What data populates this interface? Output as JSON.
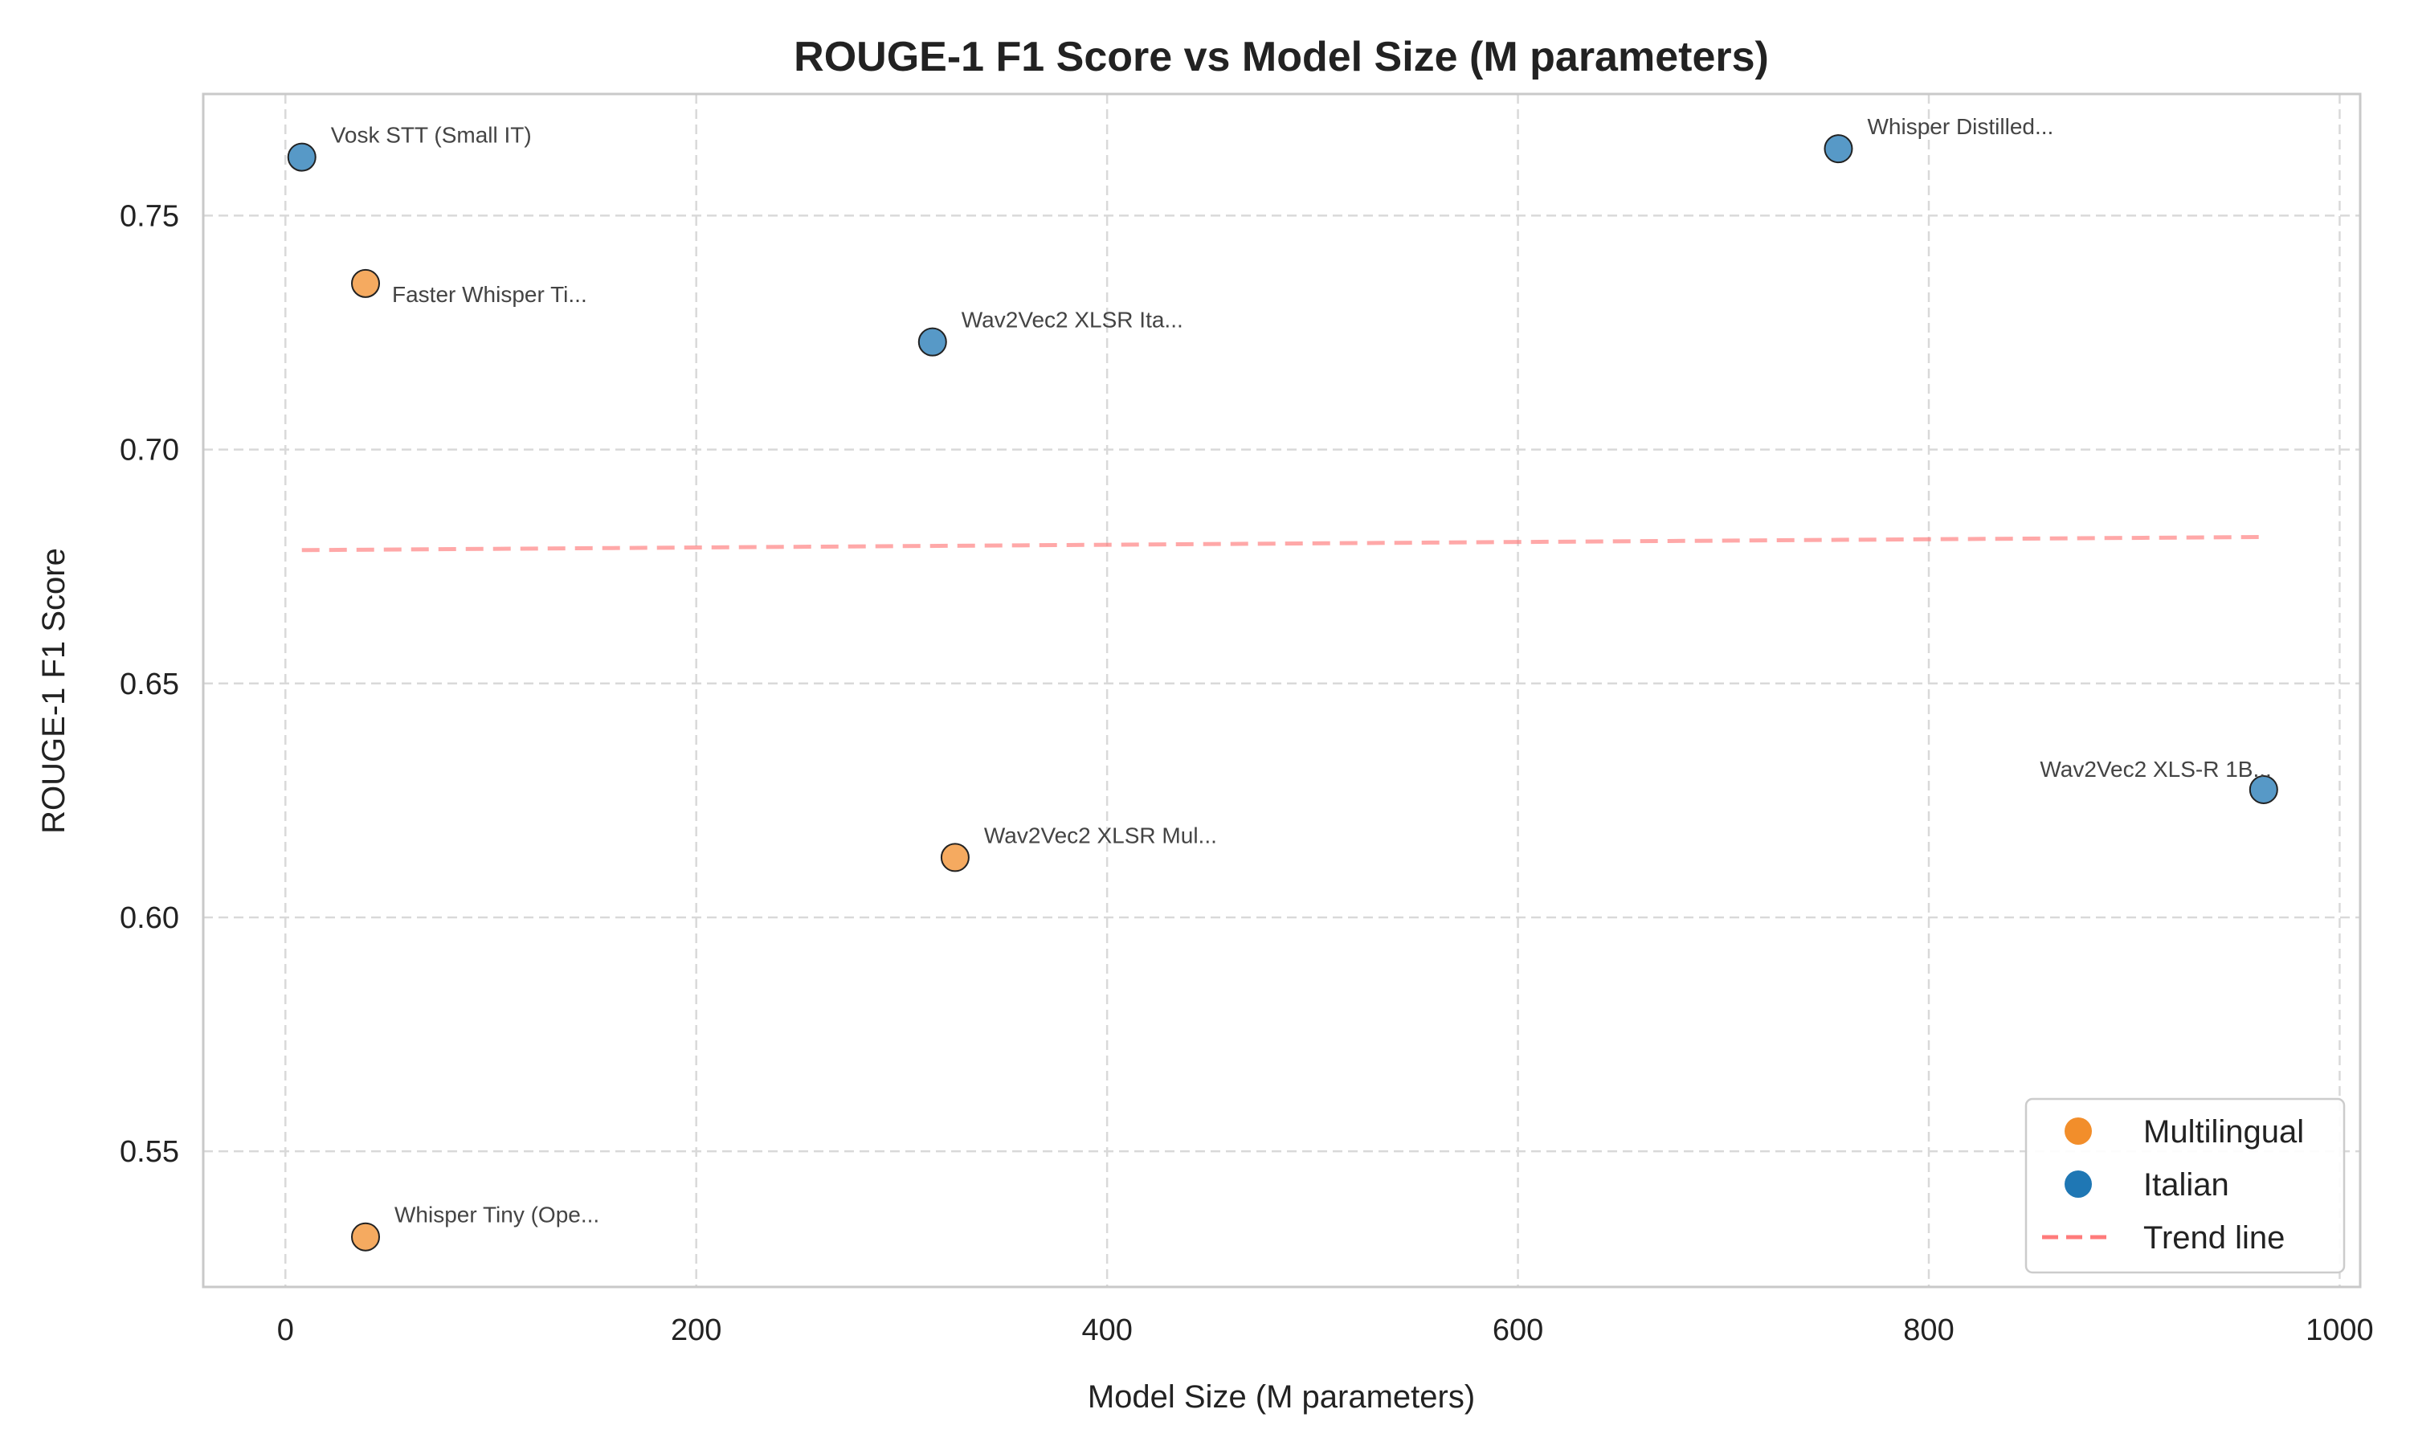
{
  "chart_data": {
    "type": "scatter",
    "title": "ROUGE-1 F1 Score vs Model Size (M parameters)",
    "xlabel": "Model Size (M parameters)",
    "ylabel": "ROUGE-1 F1 Score",
    "xlim": [
      -40,
      1010
    ],
    "ylim": [
      0.521,
      0.776
    ],
    "x_ticks": [
      0,
      200,
      400,
      600,
      800,
      1000
    ],
    "y_ticks": [
      0.55,
      0.6,
      0.65,
      0.7,
      0.75
    ],
    "x_tick_labels": [
      "0",
      "200",
      "400",
      "600",
      "800",
      "1000"
    ],
    "y_tick_labels": [
      "0.55",
      "0.60",
      "0.65",
      "0.70",
      "0.75"
    ],
    "grid": true,
    "legend_position": "bottom-right",
    "colors": {
      "Multilingual": "#f28e2b",
      "Italian": "#1f77b4",
      "Trend line": "#ff7b7b"
    },
    "points": [
      {
        "label": "Vosk STT (Small IT)",
        "x": 8,
        "y": 0.7625,
        "group": "Italian",
        "label_anchor": "above-right"
      },
      {
        "label": "Faster Whisper Ti...",
        "x": 39,
        "y": 0.7355,
        "group": "Multilingual",
        "label_anchor": "below-right"
      },
      {
        "label": "Wav2Vec2 XLSR Ita...",
        "x": 315,
        "y": 0.723,
        "group": "Italian",
        "label_anchor": "above-right"
      },
      {
        "label": "Whisper Distilled...",
        "x": 756,
        "y": 0.7643,
        "group": "Italian",
        "label_anchor": "above-right"
      },
      {
        "label": "Wav2Vec2 XLS-R 1B...",
        "x": 963,
        "y": 0.6273,
        "group": "Italian",
        "label_anchor": "above-left"
      },
      {
        "label": "Wav2Vec2 XLSR Mul...",
        "x": 326,
        "y": 0.6128,
        "group": "Multilingual",
        "label_anchor": "above-right"
      },
      {
        "label": "Whisper Tiny (Ope...",
        "x": 39,
        "y": 0.5317,
        "group": "Multilingual",
        "label_anchor": "above-right"
      }
    ],
    "trend_line": {
      "x": [
        8,
        963
      ],
      "y": [
        0.6785,
        0.6813
      ]
    },
    "legend": [
      {
        "name": "Multilingual",
        "kind": "marker"
      },
      {
        "name": "Italian",
        "kind": "marker"
      },
      {
        "name": "Trend line",
        "kind": "dashed-line"
      }
    ]
  }
}
